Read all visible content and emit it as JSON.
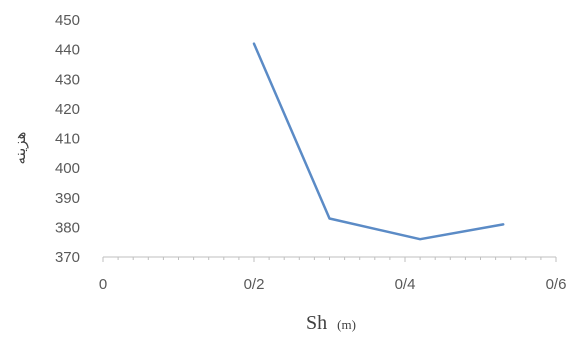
{
  "chart_data": {
    "type": "line",
    "xlabel": "Sh",
    "xlabel_unit": "(m)",
    "ylabel": "هزینه",
    "xlim": [
      0,
      0.6
    ],
    "ylim": [
      370,
      450
    ],
    "x_ticks": [
      0,
      0.2,
      0.4,
      0.6
    ],
    "x_tick_labels": [
      "0",
      "0/2",
      "0/4",
      "0/6"
    ],
    "y_ticks": [
      370,
      380,
      390,
      400,
      410,
      420,
      430,
      440,
      450
    ],
    "y_tick_labels": [
      "370",
      "380",
      "390",
      "400",
      "410",
      "420",
      "430",
      "440",
      "450"
    ],
    "grid": false,
    "legend": "none",
    "series": [
      {
        "color": "#5b8bc6",
        "x": [
          0.2,
          0.3,
          0.42,
          0.53
        ],
        "y": [
          442,
          383,
          376,
          381
        ]
      }
    ]
  }
}
